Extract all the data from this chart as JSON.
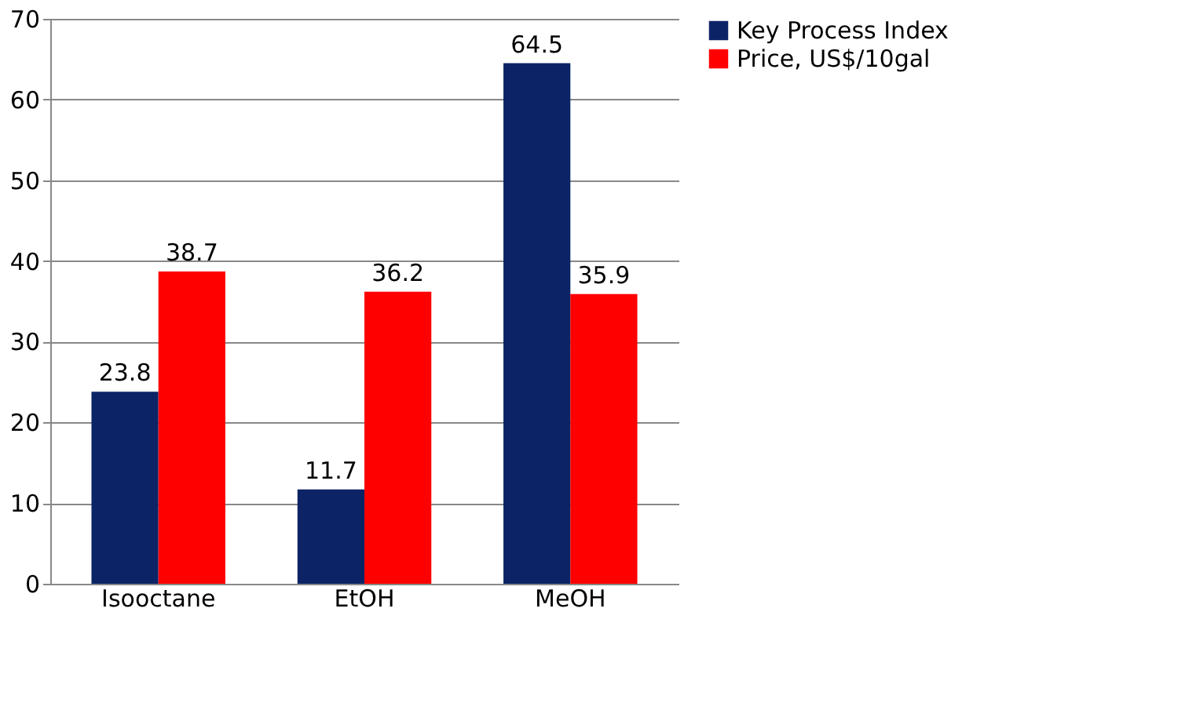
{
  "chart_data": {
    "type": "bar",
    "categories": [
      "Isooctane",
      "EtOH",
      "MeOH"
    ],
    "series": [
      {
        "name": "Key Process Index",
        "color": "#0c2466",
        "values": [
          23.8,
          11.7,
          64.5
        ]
      },
      {
        "name": "Price, US$/10gal",
        "color": "#ff0000",
        "values": [
          38.7,
          36.2,
          35.9
        ]
      }
    ],
    "ylim": [
      0,
      70
    ],
    "yticks": [
      0,
      10,
      20,
      30,
      40,
      50,
      60,
      70
    ],
    "grid": "y",
    "legend": "right",
    "data_labels": true
  }
}
